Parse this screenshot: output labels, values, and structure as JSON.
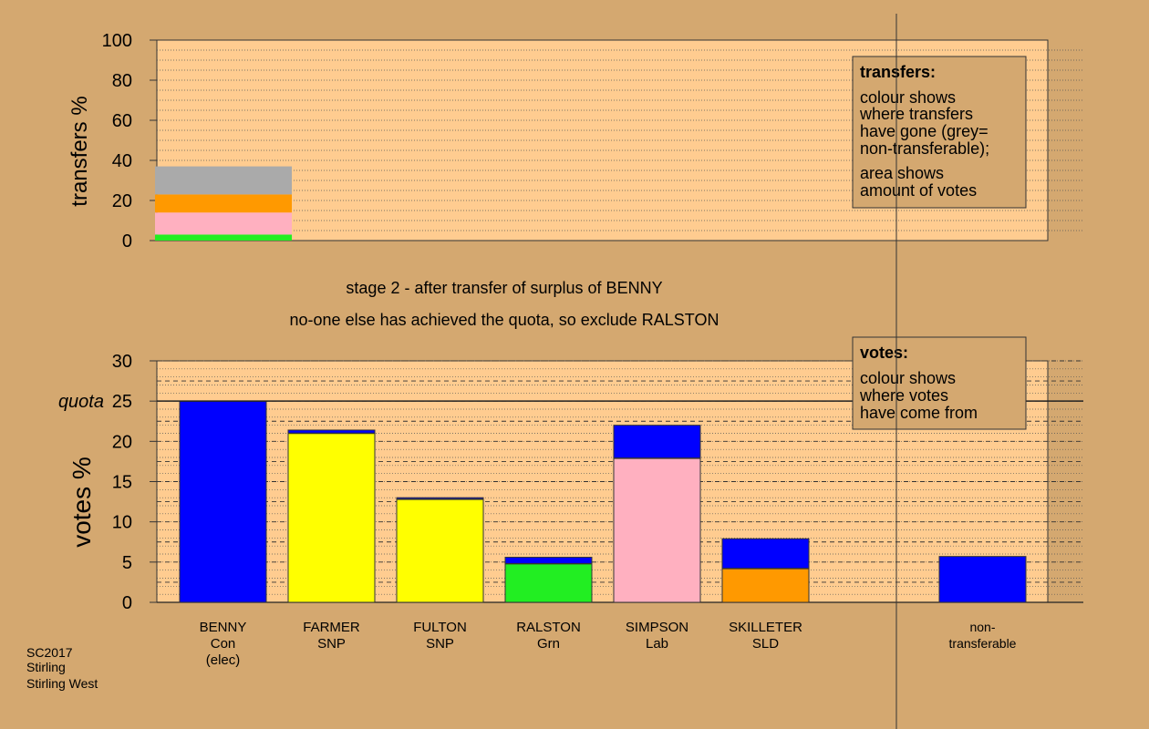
{
  "chart_data": [
    {
      "type": "bar",
      "ylabel": "transfers %",
      "ylim": [
        0,
        100
      ],
      "yticks": [
        0,
        20,
        40,
        60,
        80,
        100
      ],
      "grid": true,
      "bars": [
        {
          "category": "BENNY",
          "segments": [
            {
              "to": "RALSTON",
              "color": "#22ee22",
              "value": 3
            },
            {
              "to": "SIMPSON",
              "color": "#ffb0c0",
              "value": 11
            },
            {
              "to": "SKILLETER",
              "color": "#ff9900",
              "value": 9
            },
            {
              "to": "non-transferable",
              "color": "#aaaaaa",
              "value": 14
            }
          ]
        }
      ],
      "legend": {
        "title": "transfers:",
        "lines": [
          "colour shows",
          "where transfers",
          "have gone (grey=",
          "non-transferable);"
        ],
        "lines2": [
          "area shows",
          "amount of votes"
        ]
      }
    },
    {
      "type": "bar",
      "ylabel": "votes %",
      "ylim": [
        0,
        30
      ],
      "yticks": [
        0,
        5,
        10,
        15,
        20,
        25,
        30
      ],
      "quota": {
        "label": "quota",
        "value": 25
      },
      "grid": true,
      "categories": [
        {
          "name": "BENNY",
          "party": "Con",
          "extra": "(elec)"
        },
        {
          "name": "FARMER",
          "party": "SNP",
          "extra": ""
        },
        {
          "name": "FULTON",
          "party": "SNP",
          "extra": ""
        },
        {
          "name": "RALSTON",
          "party": "Grn",
          "extra": ""
        },
        {
          "name": "SIMPSON",
          "party": "Lab",
          "extra": ""
        },
        {
          "name": "SKILLETER",
          "party": "SLD",
          "extra": ""
        },
        {
          "name": "",
          "party": "",
          "extra": ""
        },
        {
          "name": "non-",
          "party": "transferable",
          "extra": ""
        }
      ],
      "stacks": [
        [
          {
            "color": "#0000ff",
            "value": 25.0
          }
        ],
        [
          {
            "color": "#ffff00",
            "value": 21.0
          },
          {
            "color": "#0000ff",
            "value": 0.4
          }
        ],
        [
          {
            "color": "#ffff00",
            "value": 12.8
          },
          {
            "color": "#0000ff",
            "value": 0.2
          }
        ],
        [
          {
            "color": "#22ee22",
            "value": 4.8
          },
          {
            "color": "#0000ff",
            "value": 0.8
          }
        ],
        [
          {
            "color": "#ffb0c0",
            "value": 17.9
          },
          {
            "color": "#0000ff",
            "value": 4.1
          }
        ],
        [
          {
            "color": "#ff9900",
            "value": 4.2
          },
          {
            "color": "#0000ff",
            "value": 3.7
          }
        ],
        [],
        [
          {
            "color": "#0000ff",
            "value": 5.7
          }
        ]
      ],
      "legend": {
        "title": "votes:",
        "lines": [
          "colour shows",
          "where votes",
          "have come from"
        ]
      }
    }
  ],
  "stage_text": {
    "line1": "stage 2 - after transfer of surplus of BENNY",
    "line2": "no-one else has achieved the quota, so exclude RALSTON"
  },
  "footer": {
    "line1": "SC2017",
    "line2": "Stirling",
    "line3": "Stirling West"
  },
  "colors": {
    "background": "#d4a870",
    "plot_background": "#ffcc90",
    "Con": "#0000ff",
    "SNP": "#ffff00",
    "Grn": "#22ee22",
    "Lab": "#ffb0c0",
    "SLD": "#ff9900",
    "non-transferable": "#aaaaaa"
  }
}
